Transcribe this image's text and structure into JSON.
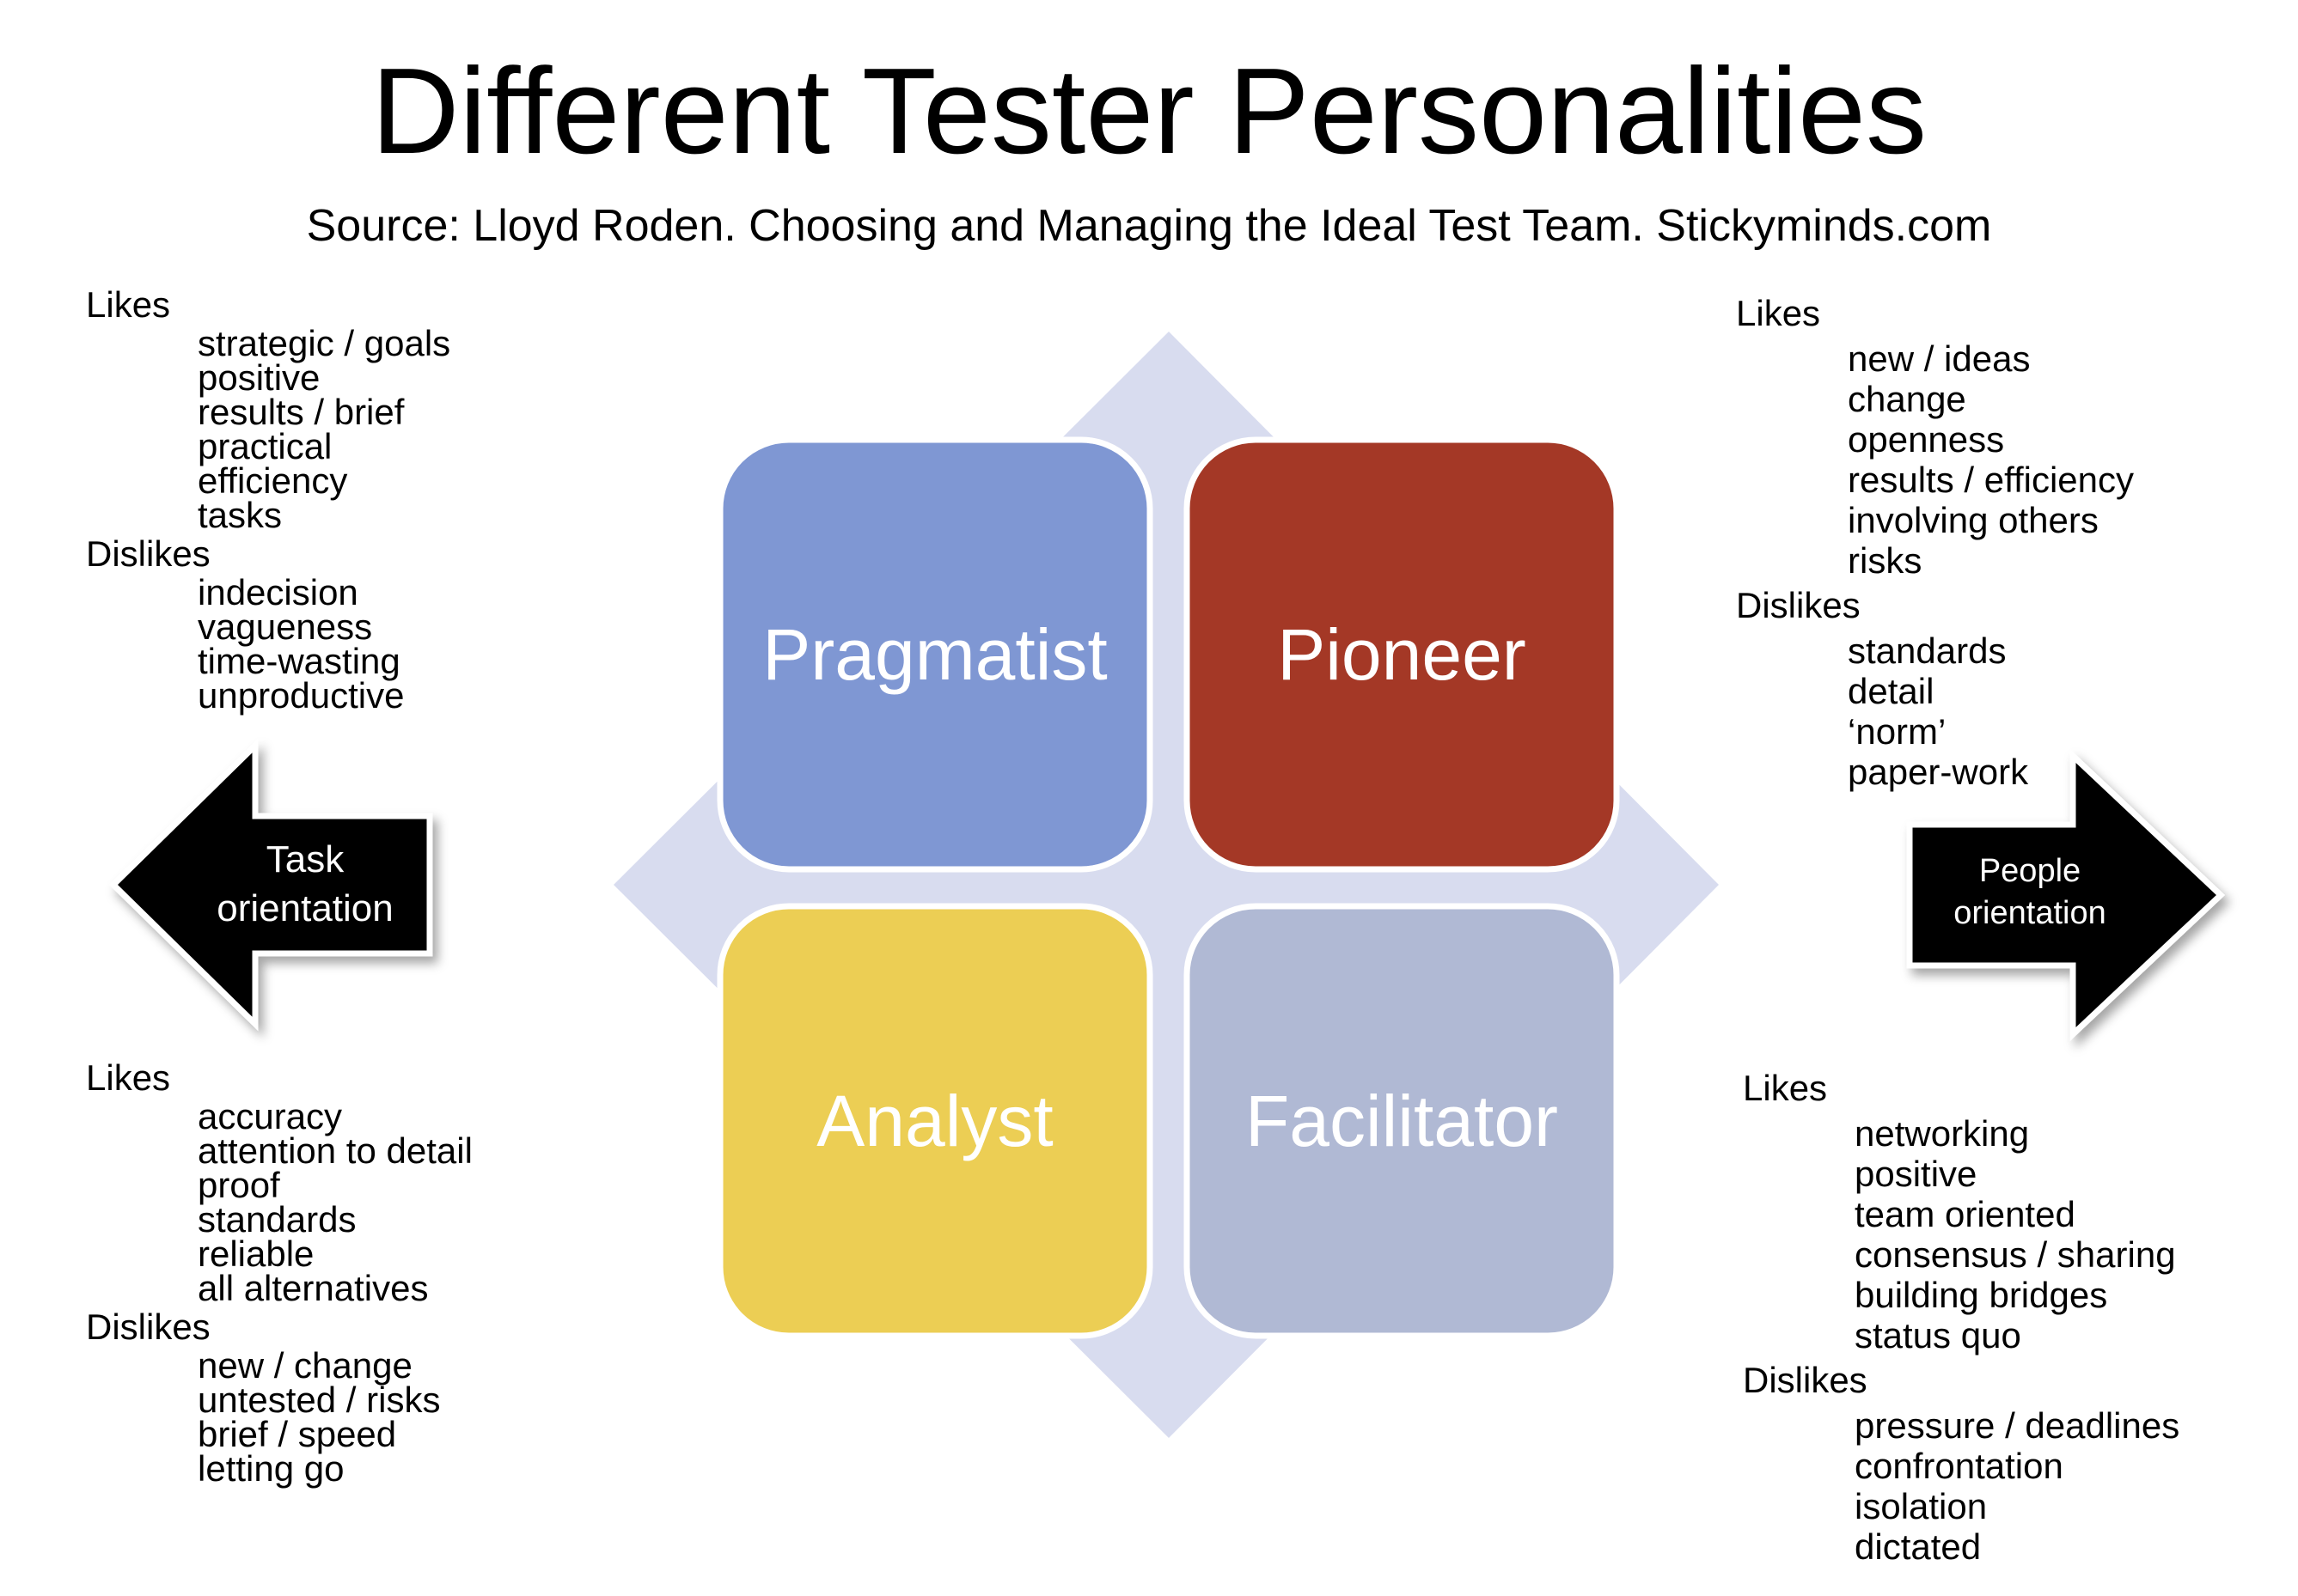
{
  "title": "Different Tester Personalities",
  "subtitle": "Source: Lloyd Roden. Choosing and Managing the Ideal Test Team. Stickyminds.com",
  "quadrants": {
    "pragmatist": {
      "label": "Pragmatist",
      "color": "#7f97d3"
    },
    "pioneer": {
      "label": "Pioneer",
      "color": "#a43826"
    },
    "analyst": {
      "label": "Analyst",
      "color": "#ecce54"
    },
    "facilitator": {
      "label": "Facilitator",
      "color": "#b0b9d4"
    }
  },
  "background_color": "#d8dcef",
  "arrows": {
    "task": {
      "line1": "Task",
      "line2": "orientation"
    },
    "people": {
      "line1": "People",
      "line2": "orientation"
    }
  },
  "traits": {
    "pragmatist": {
      "likes_label": "Likes",
      "likes": [
        "strategic / goals",
        "positive",
        "results / brief",
        "practical",
        "efficiency",
        "tasks"
      ],
      "dislikes_label": "Dislikes",
      "dislikes": [
        "indecision",
        "vagueness",
        "time-wasting",
        "unproductive"
      ]
    },
    "analyst": {
      "likes_label": "Likes",
      "likes": [
        "accuracy",
        "attention to detail",
        "proof",
        "standards",
        "reliable",
        "all alternatives"
      ],
      "dislikes_label": "Dislikes",
      "dislikes": [
        "new / change",
        "untested / risks",
        "brief / speed",
        "letting go"
      ]
    },
    "pioneer": {
      "likes_label": "Likes",
      "likes": [
        "new / ideas",
        "change",
        "openness",
        "results / efficiency",
        "involving others",
        "risks"
      ],
      "dislikes_label": "Dislikes",
      "dislikes": [
        "standards",
        "detail",
        "‘norm’",
        "paper-work"
      ]
    },
    "facilitator": {
      "likes_label": "Likes",
      "likes": [
        "networking",
        "positive",
        "team oriented",
        "consensus / sharing",
        "building bridges",
        "status quo"
      ],
      "dislikes_label": "Dislikes",
      "dislikes": [
        "pressure / deadlines",
        "confrontation",
        "isolation",
        "dictated"
      ]
    }
  }
}
